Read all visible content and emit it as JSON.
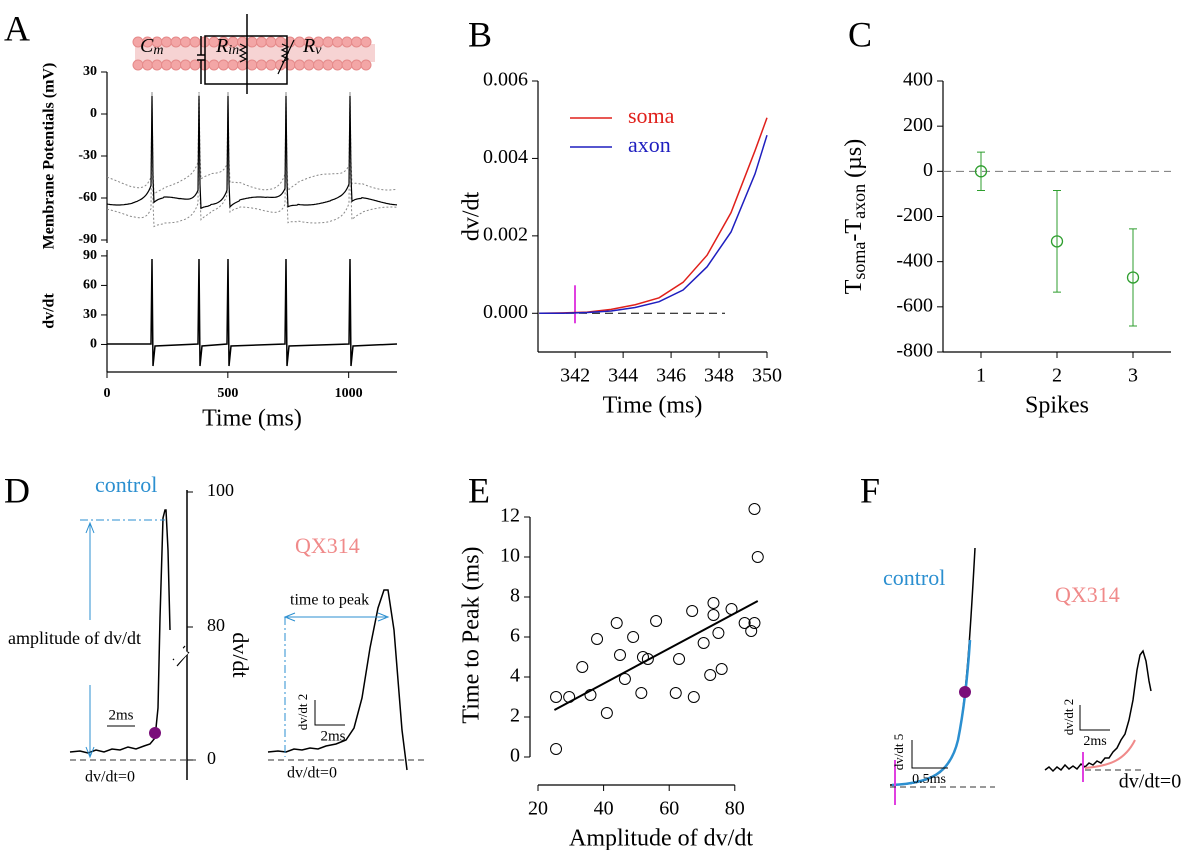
{
  "panel_labels": [
    "A",
    "B",
    "C",
    "D",
    "E",
    "F"
  ],
  "circuit": {
    "cm": [
      "C",
      "m"
    ],
    "rin": [
      "R",
      "in"
    ],
    "rv": [
      "R",
      "v"
    ]
  },
  "chart_data": [
    {
      "type": "trace",
      "ylabel": "Membrane Potentials (mV)",
      "ylim": [
        -90,
        30
      ],
      "yticks": [
        30,
        0,
        -30,
        -60,
        -90
      ]
    },
    {
      "type": "trace",
      "ylabel": "dv/dt",
      "xlabel": "Time (ms)",
      "xlim": [
        0,
        1200
      ],
      "xticks": [
        0,
        500,
        1000
      ],
      "ylim": [
        -28,
        96
      ],
      "yticks": [
        90,
        60,
        30,
        0
      ]
    },
    {
      "type": "line",
      "ylabel": "dv/dt",
      "xlabel": "Time (ms)",
      "x": [
        340.5,
        341.5,
        342.5,
        343.5,
        344.5,
        345.5,
        346.5,
        347.5,
        348.5,
        349.5,
        350
      ],
      "series": [
        {
          "name": "soma",
          "color": "#e0201b",
          "values": [
            0,
            1e-05,
            3e-05,
            0.0001,
            0.00022,
            0.0004,
            0.0008,
            0.0015,
            0.0026,
            0.0042,
            0.00505
          ]
        },
        {
          "name": "axon",
          "color": "#1f1fbf",
          "values": [
            0,
            0,
            2e-05,
            6e-05,
            0.00015,
            0.0003,
            0.0006,
            0.0012,
            0.0021,
            0.0036,
            0.0046
          ]
        }
      ],
      "xlim": [
        340.45,
        350
      ],
      "xticks": [
        342,
        344,
        346,
        348,
        350
      ],
      "ylim": [
        -0.001,
        0.006
      ],
      "yticks": [
        {
          "value": 0,
          "label": "0.000"
        },
        {
          "value": 0.002,
          "label": "0.002"
        },
        {
          "value": 0.004,
          "label": "0.004"
        },
        {
          "value": 0.006,
          "label": "0.006"
        }
      ],
      "legend": "upper left"
    },
    {
      "type": "errorbar",
      "x": [
        1,
        2,
        3
      ],
      "values": [
        0,
        -310,
        -470
      ],
      "errors": [
        85,
        225,
        215
      ],
      "color": "#2e9e2e",
      "xlabel": "Spikes",
      "ylabel": [
        "T",
        "soma",
        "-T",
        "axon",
        "(µs)"
      ],
      "xlim": [
        0.5,
        3.5
      ],
      "xticks": [
        1,
        2,
        3
      ],
      "ylim": [
        -800,
        400
      ],
      "yticks": [
        -800,
        -600,
        -400,
        -200,
        0,
        200,
        400
      ]
    },
    {
      "type": "scatter",
      "x": [
        25.5,
        25.5,
        29.5,
        33.5,
        36,
        38,
        41,
        44,
        45,
        46.5,
        49,
        51.5,
        52,
        53.5,
        56,
        62,
        63,
        67,
        67.5,
        70.5,
        72.5,
        73.5,
        73.5,
        75,
        76,
        79,
        83,
        85,
        86,
        86,
        87
      ],
      "values": [
        0.4,
        3.0,
        3.0,
        4.5,
        3.1,
        5.9,
        2.2,
        6.7,
        5.1,
        3.9,
        6.0,
        3.2,
        5.0,
        4.9,
        6.8,
        3.2,
        4.9,
        7.3,
        3.0,
        5.7,
        4.1,
        7.7,
        7.1,
        6.2,
        4.4,
        7.4,
        6.7,
        6.3,
        6.7,
        12.4,
        10.0
      ],
      "fit": {
        "x": [
          25,
          87
        ],
        "values": [
          2.35,
          7.8
        ]
      },
      "xlabel": "Amplitude of dv/dt",
      "ylabel": "Time to Peak (ms)",
      "xlim": [
        20,
        95
      ],
      "xticks": [
        20,
        40,
        60,
        80
      ],
      "ylim": [
        -0.8,
        13
      ],
      "yticks": [
        0,
        2,
        4,
        6,
        8,
        10,
        12
      ]
    }
  ],
  "panel_d": {
    "control": "control",
    "qx314": "QX314",
    "yticks": [
      100,
      80,
      0
    ],
    "ylabel": "dv/dt",
    "amplitude": "amplitude of dv/dt",
    "scale_left": "2ms",
    "zero_left": "dv/dt=0",
    "time_to_peak": "time to peak",
    "scale_right_y": "dv/dt 2",
    "scale_right_x": "2ms",
    "zero_right": "dv/dt=0"
  },
  "panel_f": {
    "control": "control",
    "qx314": "QX314",
    "scale_left_y": "dv/dt 5",
    "scale_left_x": "0.5ms",
    "scale_right_y": "dv/dt 2",
    "scale_right_x": "2ms",
    "zero": "dv/dt=0"
  }
}
